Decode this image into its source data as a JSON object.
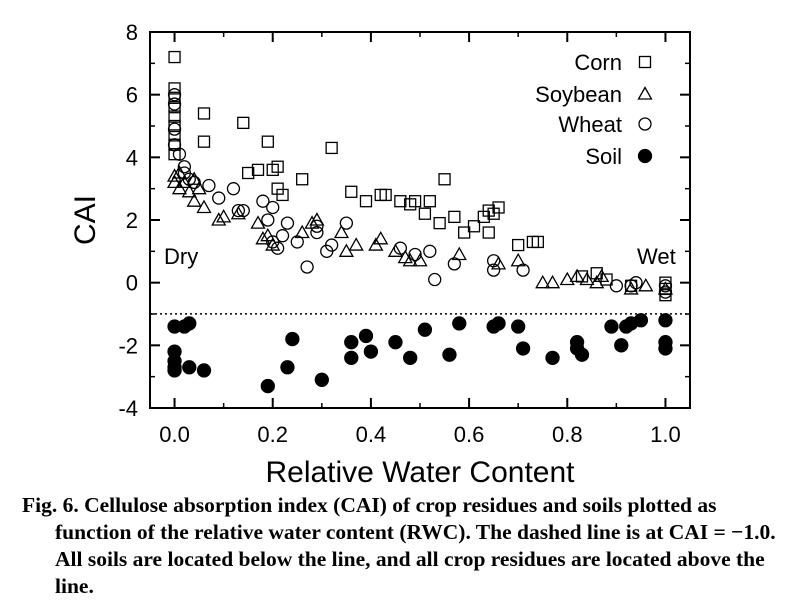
{
  "caption": "Fig. 6. Cellulose absorption index (CAI) of crop residues and soils plotted as function of the relative water content (RWC). The dashed line is at CAI = −1.0. All soils are located below the line, and all crop residues are located above the line.",
  "chart_data": {
    "type": "scatter",
    "title": "",
    "xlabel": "Relative Water Content",
    "ylabel": "CAI",
    "xlim": [
      -0.05,
      1.05
    ],
    "ylim": [
      -4,
      8
    ],
    "xticks": [
      0.0,
      0.2,
      0.4,
      0.6,
      0.8,
      1.0
    ],
    "xtick_labels": [
      "0.0",
      "0.2",
      "0.4",
      "0.6",
      "0.8",
      "1.0"
    ],
    "yticks": [
      -4,
      -2,
      0,
      2,
      4,
      6,
      8
    ],
    "ytick_labels": [
      "-4",
      "-2",
      "0",
      "2",
      "4",
      "6",
      "8"
    ],
    "grid": false,
    "legend_position": "top-right",
    "annotations": [
      {
        "text": "Dry",
        "x": 0.0,
        "y": 0.8
      },
      {
        "text": "Wet",
        "x": 1.0,
        "y": 0.8
      }
    ],
    "reference_line": {
      "y": -1.0,
      "style": "dotted"
    },
    "series": [
      {
        "name": "Corn",
        "marker": "square-open",
        "points": [
          [
            0.0,
            7.2
          ],
          [
            0.0,
            6.2
          ],
          [
            0.0,
            5.9
          ],
          [
            0.0,
            5.6
          ],
          [
            0.0,
            5.3
          ],
          [
            0.0,
            5.0
          ],
          [
            0.0,
            4.7
          ],
          [
            0.0,
            4.4
          ],
          [
            0.0,
            4.1
          ],
          [
            0.06,
            5.4
          ],
          [
            0.06,
            4.5
          ],
          [
            0.14,
            5.1
          ],
          [
            0.19,
            4.5
          ],
          [
            0.15,
            3.5
          ],
          [
            0.17,
            3.6
          ],
          [
            0.2,
            3.6
          ],
          [
            0.21,
            3.7
          ],
          [
            0.21,
            3.0
          ],
          [
            0.22,
            2.8
          ],
          [
            0.26,
            3.3
          ],
          [
            0.32,
            4.3
          ],
          [
            0.36,
            2.9
          ],
          [
            0.39,
            2.6
          ],
          [
            0.42,
            2.8
          ],
          [
            0.43,
            2.8
          ],
          [
            0.46,
            2.6
          ],
          [
            0.48,
            2.5
          ],
          [
            0.49,
            2.6
          ],
          [
            0.51,
            2.2
          ],
          [
            0.52,
            2.6
          ],
          [
            0.54,
            1.9
          ],
          [
            0.55,
            3.3
          ],
          [
            0.57,
            2.1
          ],
          [
            0.59,
            1.6
          ],
          [
            0.61,
            1.8
          ],
          [
            0.63,
            2.1
          ],
          [
            0.64,
            2.3
          ],
          [
            0.64,
            1.6
          ],
          [
            0.65,
            2.2
          ],
          [
            0.66,
            2.4
          ],
          [
            0.7,
            1.2
          ],
          [
            0.73,
            1.3
          ],
          [
            0.74,
            1.3
          ],
          [
            0.83,
            0.2
          ],
          [
            0.86,
            0.3
          ],
          [
            0.88,
            0.1
          ],
          [
            0.93,
            -0.1
          ],
          [
            1.0,
            0.0
          ],
          [
            1.0,
            -0.2
          ],
          [
            1.0,
            -0.4
          ]
        ]
      },
      {
        "name": "Soybean",
        "marker": "triangle-open",
        "points": [
          [
            0.0,
            3.4
          ],
          [
            0.0,
            3.2
          ],
          [
            0.01,
            3.5
          ],
          [
            0.01,
            3.0
          ],
          [
            0.02,
            3.2
          ],
          [
            0.03,
            2.9
          ],
          [
            0.04,
            2.6
          ],
          [
            0.04,
            3.3
          ],
          [
            0.05,
            3.0
          ],
          [
            0.06,
            2.4
          ],
          [
            0.09,
            2.0
          ],
          [
            0.1,
            2.1
          ],
          [
            0.13,
            2.2
          ],
          [
            0.17,
            1.9
          ],
          [
            0.18,
            1.4
          ],
          [
            0.19,
            1.5
          ],
          [
            0.2,
            1.2
          ],
          [
            0.26,
            1.6
          ],
          [
            0.28,
            1.9
          ],
          [
            0.29,
            2.0
          ],
          [
            0.34,
            1.6
          ],
          [
            0.35,
            1.0
          ],
          [
            0.37,
            1.2
          ],
          [
            0.41,
            1.2
          ],
          [
            0.42,
            1.4
          ],
          [
            0.45,
            1.0
          ],
          [
            0.47,
            0.8
          ],
          [
            0.48,
            0.7
          ],
          [
            0.5,
            0.7
          ],
          [
            0.58,
            0.9
          ],
          [
            0.66,
            0.6
          ],
          [
            0.7,
            0.7
          ],
          [
            0.75,
            0.0
          ],
          [
            0.77,
            0.0
          ],
          [
            0.8,
            0.1
          ],
          [
            0.82,
            0.2
          ],
          [
            0.84,
            0.1
          ],
          [
            0.86,
            0.0
          ],
          [
            0.87,
            0.2
          ],
          [
            0.93,
            -0.2
          ],
          [
            0.96,
            -0.1
          ],
          [
            1.0,
            -0.2
          ]
        ]
      },
      {
        "name": "Wheat",
        "marker": "circle-open",
        "points": [
          [
            0.0,
            6.0
          ],
          [
            0.0,
            5.7
          ],
          [
            0.0,
            4.9
          ],
          [
            0.0,
            4.4
          ],
          [
            0.01,
            4.1
          ],
          [
            0.02,
            3.7
          ],
          [
            0.02,
            3.5
          ],
          [
            0.03,
            3.3
          ],
          [
            0.04,
            3.2
          ],
          [
            0.07,
            3.1
          ],
          [
            0.09,
            2.7
          ],
          [
            0.12,
            3.0
          ],
          [
            0.13,
            2.3
          ],
          [
            0.14,
            2.3
          ],
          [
            0.18,
            2.6
          ],
          [
            0.19,
            2.0
          ],
          [
            0.2,
            2.4
          ],
          [
            0.2,
            1.3
          ],
          [
            0.21,
            1.1
          ],
          [
            0.22,
            1.5
          ],
          [
            0.23,
            1.9
          ],
          [
            0.25,
            1.3
          ],
          [
            0.29,
            1.8
          ],
          [
            0.27,
            0.5
          ],
          [
            0.29,
            1.6
          ],
          [
            0.31,
            1.0
          ],
          [
            0.32,
            1.2
          ],
          [
            0.35,
            1.9
          ],
          [
            0.46,
            1.1
          ],
          [
            0.49,
            0.9
          ],
          [
            0.52,
            1.0
          ],
          [
            0.53,
            0.1
          ],
          [
            0.57,
            0.6
          ],
          [
            0.65,
            0.7
          ],
          [
            0.65,
            0.4
          ],
          [
            0.71,
            0.4
          ],
          [
            0.9,
            -0.1
          ],
          [
            0.93,
            -0.1
          ],
          [
            0.94,
            0.0
          ],
          [
            1.0,
            -0.1
          ],
          [
            1.0,
            -0.3
          ]
        ]
      },
      {
        "name": "Soil",
        "marker": "circle-filled",
        "points": [
          [
            0.0,
            -1.4
          ],
          [
            0.0,
            -2.2
          ],
          [
            0.0,
            -2.5
          ],
          [
            0.0,
            -2.7
          ],
          [
            0.0,
            -2.8
          ],
          [
            0.02,
            -1.4
          ],
          [
            0.03,
            -1.3
          ],
          [
            0.03,
            -2.7
          ],
          [
            0.06,
            -2.8
          ],
          [
            0.19,
            -3.3
          ],
          [
            0.23,
            -2.7
          ],
          [
            0.24,
            -1.8
          ],
          [
            0.3,
            -3.1
          ],
          [
            0.36,
            -1.9
          ],
          [
            0.36,
            -2.4
          ],
          [
            0.39,
            -1.7
          ],
          [
            0.4,
            -2.2
          ],
          [
            0.45,
            -1.9
          ],
          [
            0.48,
            -2.4
          ],
          [
            0.51,
            -1.5
          ],
          [
            0.56,
            -2.3
          ],
          [
            0.58,
            -1.3
          ],
          [
            0.65,
            -1.4
          ],
          [
            0.66,
            -1.3
          ],
          [
            0.7,
            -1.4
          ],
          [
            0.71,
            -2.1
          ],
          [
            0.77,
            -2.4
          ],
          [
            0.82,
            -1.9
          ],
          [
            0.82,
            -2.1
          ],
          [
            0.83,
            -2.3
          ],
          [
            0.89,
            -1.4
          ],
          [
            0.91,
            -2.0
          ],
          [
            0.92,
            -1.4
          ],
          [
            0.93,
            -1.3
          ],
          [
            0.95,
            -1.2
          ],
          [
            1.0,
            -1.2
          ],
          [
            1.0,
            -1.9
          ],
          [
            1.0,
            -2.1
          ]
        ]
      }
    ]
  }
}
